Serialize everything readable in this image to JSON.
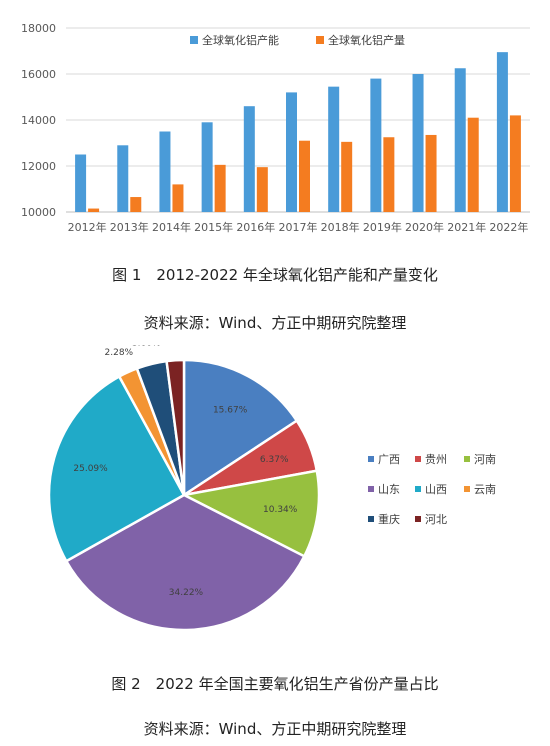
{
  "figure1": {
    "caption": "图 1　2012-2022 年全球氧化铝产能和产量变化",
    "source": "资料来源：Wind、方正中期研究院整理"
  },
  "figure2": {
    "caption": "图 2　2022 年全国主要氧化铝生产省份产量占比",
    "source": "资料来源：Wind、方正中期研究院整理"
  },
  "chart_data": [
    {
      "type": "bar",
      "title": "",
      "xlabel": "",
      "ylabel": "",
      "categories": [
        "2012年",
        "2013年",
        "2014年",
        "2015年",
        "2016年",
        "2017年",
        "2018年",
        "2019年",
        "2020年",
        "2021年",
        "2022年"
      ],
      "series": [
        {
          "name": "全球氧化铝产能",
          "color": "#4a9bd8",
          "values": [
            12500,
            12900,
            13500,
            13900,
            14600,
            15200,
            15450,
            15800,
            16000,
            16250,
            16950
          ]
        },
        {
          "name": "全球氧化铝产量",
          "color": "#f47c20",
          "values": [
            10150,
            10650,
            11200,
            12050,
            11950,
            13100,
            13050,
            13250,
            13350,
            14100,
            14200
          ]
        }
      ],
      "ylim": [
        10000,
        18000
      ],
      "yticks": [
        10000,
        12000,
        14000,
        16000,
        18000
      ],
      "grid": true,
      "legend": "top-right"
    },
    {
      "type": "pie",
      "title": "",
      "slices": [
        {
          "label": "广西",
          "value": 15.67,
          "text": "15.67%",
          "color": "#4a7fc1"
        },
        {
          "label": "贵州",
          "value": 6.37,
          "text": "6.37%",
          "color": "#cf4848"
        },
        {
          "label": "河南",
          "value": 10.34,
          "text": "10.34%",
          "color": "#97c03f"
        },
        {
          "label": "山东",
          "value": 34.22,
          "text": "34.22%",
          "color": "#8062a8"
        },
        {
          "label": "山西",
          "value": 25.09,
          "text": "25.09%",
          "color": "#20aac8"
        },
        {
          "label": "云南",
          "value": 2.28,
          "text": "2.28%",
          "color": "#f39433"
        },
        {
          "label": "重庆",
          "value": 3.6,
          "text": "3.60%",
          "color": "#1f4e79"
        },
        {
          "label": "河北",
          "value": 2.05,
          "text": "2.05%",
          "color": "#7b2323"
        }
      ],
      "legend": "right"
    }
  ]
}
